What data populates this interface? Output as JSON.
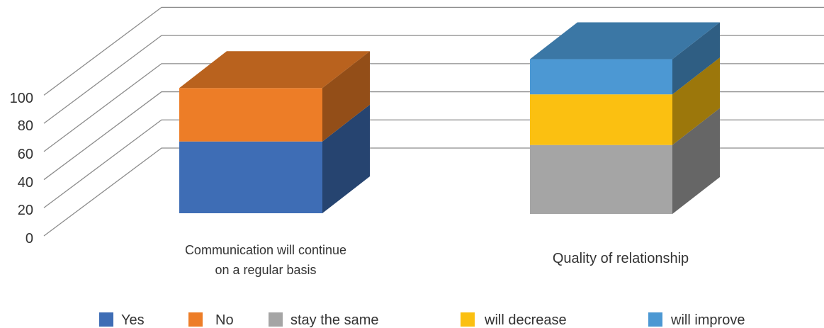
{
  "chart_data": {
    "type": "bar",
    "subtype": "3d-stacked-column",
    "title": "",
    "xlabel": "",
    "ylabel": "",
    "ylim": [
      0,
      100
    ],
    "yticks": [
      "0",
      "20",
      "40",
      "60",
      "80",
      "100"
    ],
    "grid": true,
    "legend_position": "bottom",
    "categories": [
      "Communication will continue on a regular basis",
      "Quality of relationship"
    ],
    "category_label_lines": [
      [
        "Communication will continue",
        "on a regular basis"
      ],
      [
        "Quality of relationship"
      ]
    ],
    "series": [
      {
        "name": "Yes",
        "color": "#3E6DB5",
        "values": [
          51,
          0
        ]
      },
      {
        "name": "No",
        "color": "#ED7D27",
        "values": [
          38,
          0
        ]
      },
      {
        "name": "stay the same",
        "color": "#A5A5A5",
        "values": [
          0,
          49
        ]
      },
      {
        "name": "will decrease",
        "color": "#FBC011",
        "values": [
          0,
          36
        ]
      },
      {
        "name": "will improve",
        "color": "#4C98D3",
        "values": [
          0,
          25
        ]
      }
    ]
  }
}
